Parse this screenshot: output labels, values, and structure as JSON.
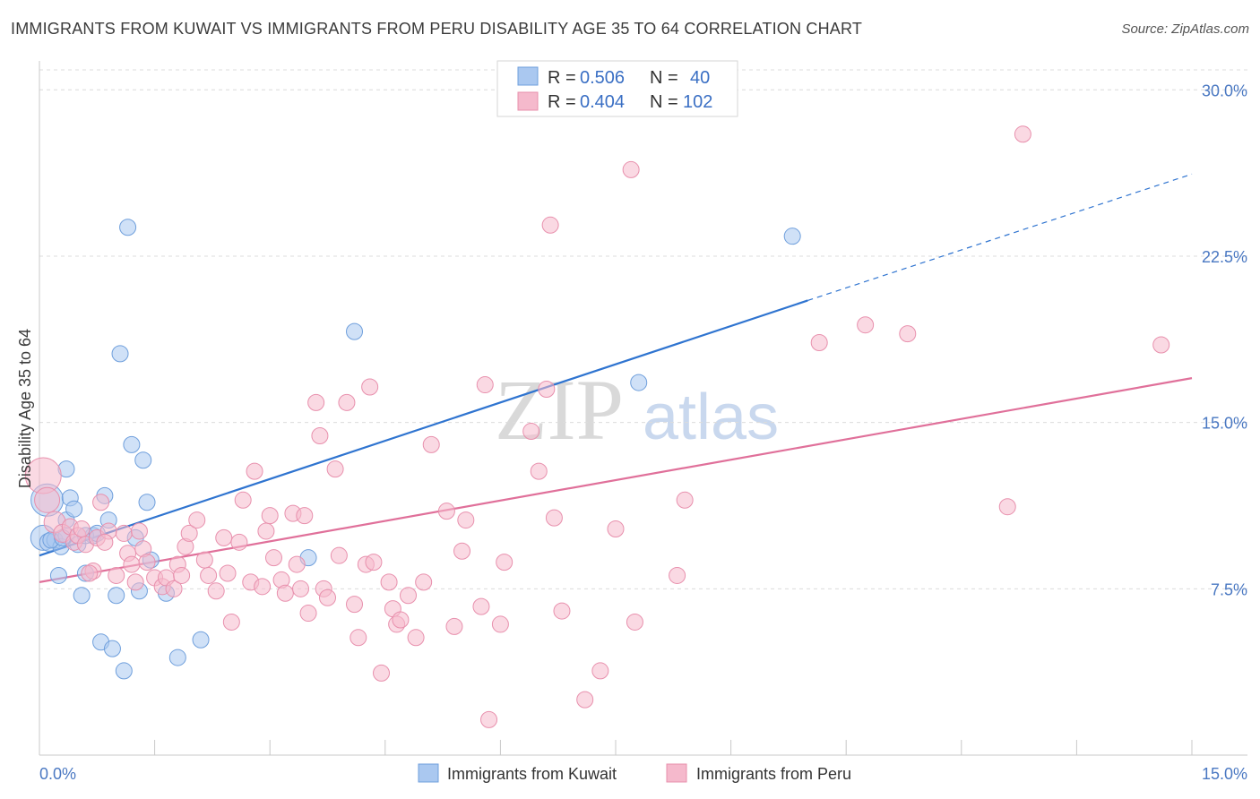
{
  "title": "IMMIGRANTS FROM KUWAIT VS IMMIGRANTS FROM PERU DISABILITY AGE 35 TO 64 CORRELATION CHART",
  "source": "Source: ZipAtlas.com",
  "watermark": {
    "zip": "ZIP",
    "atlas": "atlas"
  },
  "colors": {
    "kuwait_fill": "#aac8f0",
    "kuwait_stroke": "#6f9fdc",
    "kuwait_line": "#2f74d0",
    "peru_fill": "#f5b9cc",
    "peru_stroke": "#e890ad",
    "peru_line": "#e0709a",
    "grid": "#dcdcdc",
    "axis_label": "#4a78c2"
  },
  "legend": {
    "r_label": "R =",
    "n_label": "N =",
    "kuwait": {
      "r": "0.506",
      "n": "40"
    },
    "peru": {
      "r": "0.404",
      "n": "102"
    }
  },
  "chart_data": {
    "type": "scatter",
    "xlabel": "",
    "ylabel": "Disability Age 35 to 64",
    "xlim": [
      0,
      15
    ],
    "ylim": [
      0,
      30.9
    ],
    "x_tick_labels": [
      "0.0%",
      "15.0%"
    ],
    "y_ticks": [
      7.5,
      15.0,
      22.5,
      30.0
    ],
    "y_tick_labels": [
      "7.5%",
      "15.0%",
      "22.5%",
      "30.0%"
    ],
    "grid": true,
    "series": [
      {
        "name": "Immigrants from Kuwait",
        "color": "#aac8f0",
        "trend": {
          "x0": 0,
          "y0": 9.0,
          "x1": 10.0,
          "y1": 20.5,
          "dashed_to_x": 15.0,
          "dashed_to_y": 26.2
        },
        "points": [
          [
            0.05,
            9.8,
            14
          ],
          [
            0.1,
            11.5,
            18
          ],
          [
            0.12,
            9.6,
            10
          ],
          [
            0.2,
            9.7,
            9
          ],
          [
            0.25,
            8.1,
            9
          ],
          [
            0.28,
            9.4,
            9
          ],
          [
            0.35,
            12.9,
            9
          ],
          [
            0.35,
            9.9,
            9
          ],
          [
            0.35,
            10.6,
            9
          ],
          [
            0.4,
            11.6,
            9
          ],
          [
            0.45,
            11.1,
            9
          ],
          [
            0.5,
            9.5,
            9
          ],
          [
            0.55,
            7.2,
            9
          ],
          [
            0.6,
            8.2,
            9
          ],
          [
            0.7,
            9.9,
            9
          ],
          [
            0.8,
            5.1,
            9
          ],
          [
            0.85,
            11.7,
            9
          ],
          [
            0.9,
            10.6,
            9
          ],
          [
            0.95,
            4.8,
            9
          ],
          [
            1.0,
            7.2,
            9
          ],
          [
            1.05,
            18.1,
            9
          ],
          [
            1.1,
            3.8,
            9
          ],
          [
            1.15,
            23.8,
            9
          ],
          [
            1.2,
            14.0,
            9
          ],
          [
            1.25,
            9.8,
            9
          ],
          [
            1.3,
            7.4,
            9
          ],
          [
            1.35,
            13.3,
            9
          ],
          [
            1.4,
            11.4,
            9
          ],
          [
            1.45,
            8.8,
            9
          ],
          [
            1.65,
            7.3,
            9
          ],
          [
            1.8,
            4.4,
            9
          ],
          [
            2.1,
            5.2,
            9
          ],
          [
            3.5,
            8.9,
            9
          ],
          [
            4.1,
            19.1,
            9
          ],
          [
            7.8,
            16.8,
            9
          ],
          [
            9.8,
            23.4,
            9
          ],
          [
            0.15,
            9.7,
            9
          ],
          [
            0.3,
            9.8,
            9
          ],
          [
            0.6,
            9.9,
            9
          ],
          [
            0.75,
            10.0,
            9
          ]
        ]
      },
      {
        "name": "Immigrants from Peru",
        "color": "#f5b9cc",
        "trend": {
          "x0": 0,
          "y0": 7.8,
          "x1": 15.0,
          "y1": 17.0
        },
        "points": [
          [
            0.05,
            12.6,
            20
          ],
          [
            0.1,
            11.5,
            14
          ],
          [
            0.2,
            10.5,
            12
          ],
          [
            0.3,
            10.0,
            10
          ],
          [
            0.4,
            10.3,
            9
          ],
          [
            0.45,
            9.6,
            9
          ],
          [
            0.5,
            9.9,
            9
          ],
          [
            0.55,
            10.2,
            9
          ],
          [
            0.6,
            9.5,
            9
          ],
          [
            0.7,
            8.3,
            9
          ],
          [
            0.75,
            9.8,
            9
          ],
          [
            0.8,
            11.4,
            9
          ],
          [
            0.9,
            10.1,
            9
          ],
          [
            1.0,
            8.1,
            9
          ],
          [
            1.1,
            10.0,
            9
          ],
          [
            1.15,
            9.1,
            9
          ],
          [
            1.2,
            8.6,
            9
          ],
          [
            1.3,
            10.1,
            9
          ],
          [
            1.35,
            9.3,
            9
          ],
          [
            1.4,
            8.7,
            9
          ],
          [
            1.5,
            8.0,
            9
          ],
          [
            1.6,
            7.6,
            9
          ],
          [
            1.65,
            8.0,
            9
          ],
          [
            1.75,
            7.5,
            9
          ],
          [
            1.8,
            8.6,
            9
          ],
          [
            1.85,
            8.1,
            9
          ],
          [
            1.9,
            9.4,
            9
          ],
          [
            1.95,
            10.0,
            9
          ],
          [
            2.05,
            10.6,
            9
          ],
          [
            2.15,
            8.8,
            9
          ],
          [
            2.2,
            8.1,
            9
          ],
          [
            2.3,
            7.4,
            9
          ],
          [
            2.4,
            9.8,
            9
          ],
          [
            2.45,
            8.2,
            9
          ],
          [
            2.5,
            6.0,
            9
          ],
          [
            2.6,
            9.6,
            9
          ],
          [
            2.65,
            11.5,
            9
          ],
          [
            2.75,
            7.8,
            9
          ],
          [
            2.8,
            12.8,
            9
          ],
          [
            2.9,
            7.6,
            9
          ],
          [
            2.95,
            10.1,
            9
          ],
          [
            3.0,
            10.8,
            9
          ],
          [
            3.05,
            8.9,
            9
          ],
          [
            3.15,
            7.9,
            9
          ],
          [
            3.2,
            7.3,
            9
          ],
          [
            3.3,
            10.9,
            9
          ],
          [
            3.35,
            8.6,
            9
          ],
          [
            3.4,
            7.5,
            9
          ],
          [
            3.45,
            10.8,
            9
          ],
          [
            3.5,
            6.4,
            9
          ],
          [
            3.6,
            15.9,
            9
          ],
          [
            3.65,
            14.4,
            9
          ],
          [
            3.7,
            7.5,
            9
          ],
          [
            3.75,
            7.1,
            9
          ],
          [
            3.85,
            12.9,
            9
          ],
          [
            3.9,
            9.0,
            9
          ],
          [
            4.0,
            15.9,
            9
          ],
          [
            4.1,
            6.8,
            9
          ],
          [
            4.15,
            5.3,
            9
          ],
          [
            4.25,
            8.6,
            9
          ],
          [
            4.3,
            16.6,
            9
          ],
          [
            4.35,
            8.7,
            9
          ],
          [
            4.45,
            3.7,
            9
          ],
          [
            4.55,
            7.8,
            9
          ],
          [
            4.6,
            6.6,
            9
          ],
          [
            4.65,
            5.9,
            9
          ],
          [
            4.7,
            6.1,
            9
          ],
          [
            4.8,
            7.2,
            9
          ],
          [
            4.9,
            5.3,
            9
          ],
          [
            5.0,
            7.8,
            9
          ],
          [
            5.1,
            14.0,
            9
          ],
          [
            5.3,
            11.0,
            9
          ],
          [
            5.4,
            5.8,
            9
          ],
          [
            5.5,
            9.2,
            9
          ],
          [
            5.55,
            10.6,
            9
          ],
          [
            5.75,
            6.7,
            9
          ],
          [
            5.8,
            16.7,
            9
          ],
          [
            5.85,
            1.6,
            9
          ],
          [
            6.0,
            5.9,
            9
          ],
          [
            6.05,
            8.7,
            9
          ],
          [
            6.4,
            14.6,
            9
          ],
          [
            6.5,
            12.8,
            9
          ],
          [
            6.6,
            16.5,
            9
          ],
          [
            6.65,
            23.9,
            9
          ],
          [
            6.7,
            10.7,
            9
          ],
          [
            6.8,
            6.5,
            9
          ],
          [
            7.1,
            2.5,
            9
          ],
          [
            7.3,
            3.8,
            9
          ],
          [
            7.5,
            10.2,
            9
          ],
          [
            7.7,
            26.4,
            9
          ],
          [
            7.75,
            6.0,
            9
          ],
          [
            8.3,
            8.1,
            9
          ],
          [
            8.4,
            11.5,
            9
          ],
          [
            10.15,
            18.6,
            9
          ],
          [
            10.75,
            19.4,
            9
          ],
          [
            11.3,
            19.0,
            9
          ],
          [
            12.6,
            11.2,
            9
          ],
          [
            12.8,
            28.0,
            9
          ],
          [
            14.6,
            18.5,
            9
          ],
          [
            0.65,
            8.2,
            9
          ],
          [
            0.85,
            9.6,
            9
          ],
          [
            1.25,
            7.8,
            9
          ]
        ]
      }
    ]
  }
}
